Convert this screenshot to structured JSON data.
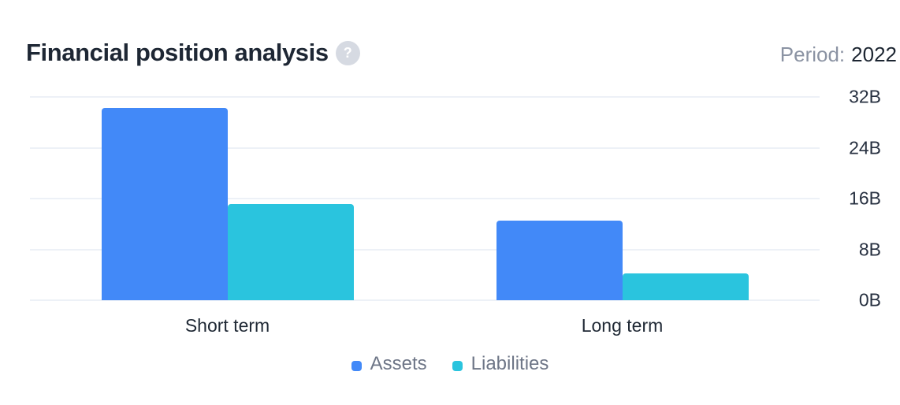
{
  "header": {
    "title": "Financial position analysis",
    "help_glyph": "?",
    "period_label": "Period:",
    "period_value": "2022"
  },
  "colors": {
    "assets": "#4289f8",
    "liabilities": "#2ac4de",
    "gridline": "#edf1f7",
    "title_text": "#1e2734",
    "muted_text": "#8b93a3",
    "legend_text": "#6e7687",
    "help_circle": "#d6dae2"
  },
  "chart_data": {
    "type": "bar",
    "title": "Financial position analysis",
    "categories": [
      "Short term",
      "Long term"
    ],
    "series": [
      {
        "name": "Assets",
        "color": "#4289f8",
        "values": [
          30.3,
          12.5
        ]
      },
      {
        "name": "Liabilities",
        "color": "#2ac4de",
        "values": [
          15.1,
          4.2
        ]
      }
    ],
    "unit": "B",
    "xlabel": "",
    "ylabel": "",
    "ylim": [
      0,
      32
    ],
    "yticks": [
      {
        "value": 32,
        "label": "32B"
      },
      {
        "value": 24,
        "label": "24B"
      },
      {
        "value": 16,
        "label": "16B"
      },
      {
        "value": 8,
        "label": "8B"
      },
      {
        "value": 0,
        "label": "0B"
      }
    ],
    "grid": "horizontal",
    "legend_position": "bottom",
    "y_axis_side": "right"
  }
}
